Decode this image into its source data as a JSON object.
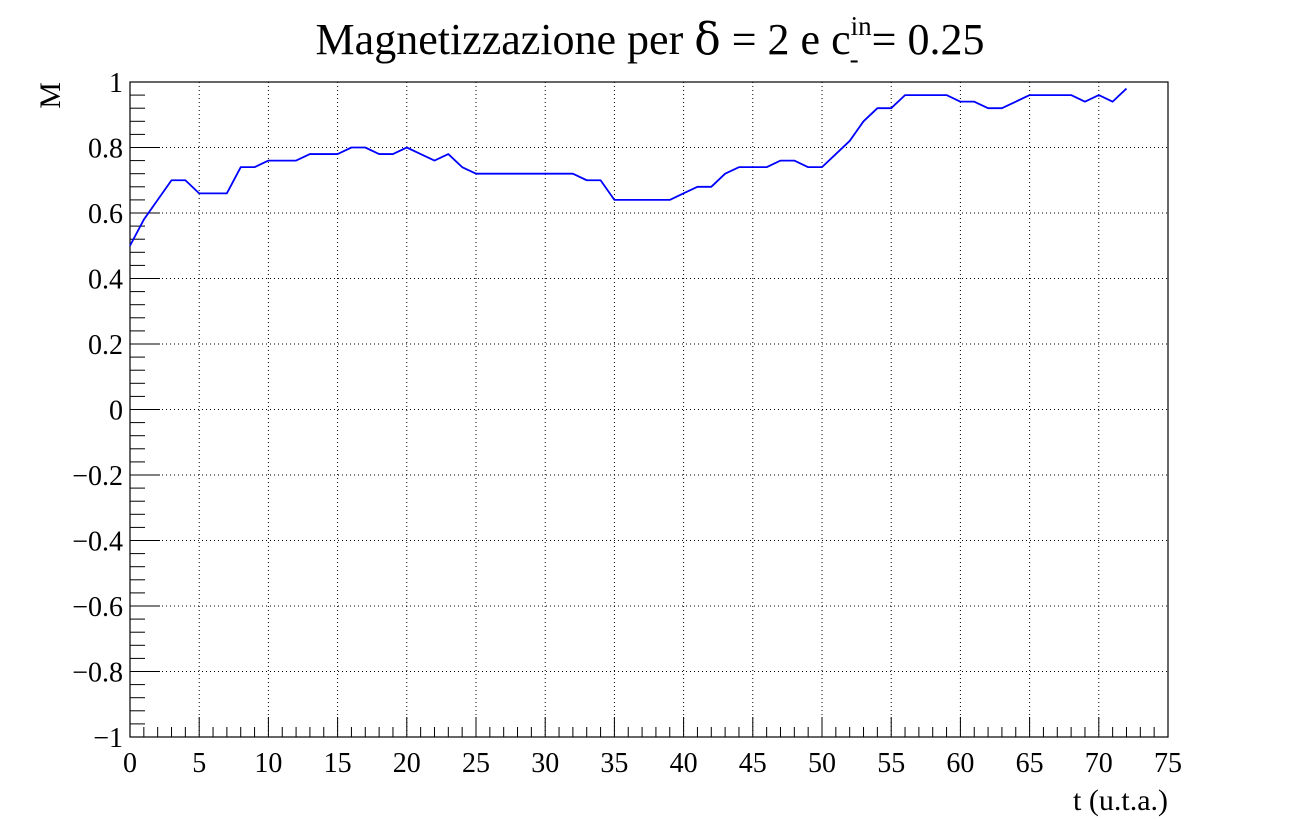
{
  "chart_data": {
    "type": "line",
    "title": {
      "prefix": "Magnetizzazione per ",
      "delta_symbol": "δ",
      "delta_rest": " = 2 e c",
      "superscript": "in",
      "subscript": "-",
      "suffix": " = 0.25"
    },
    "xlabel": "t (u.t.a.)",
    "ylabel": "M",
    "xlim": [
      0,
      75
    ],
    "ylim": [
      -1,
      1
    ],
    "x_ticks": [
      "0",
      "5",
      "10",
      "15",
      "20",
      "25",
      "30",
      "35",
      "40",
      "45",
      "50",
      "55",
      "60",
      "65",
      "70",
      "75"
    ],
    "y_ticks": [
      "−1",
      "−0.8",
      "−0.6",
      "−0.4",
      "−0.2",
      "0",
      "0.2",
      "0.4",
      "0.6",
      "0.8",
      "1"
    ],
    "grid": true,
    "line_color": "#0000ff",
    "series": [
      {
        "x": [
          0,
          1,
          2,
          3,
          4,
          5,
          6,
          7,
          8,
          9,
          10,
          11,
          12,
          13,
          14,
          15,
          16,
          17,
          18,
          19,
          20,
          21,
          22,
          23,
          24,
          25,
          26,
          27,
          28,
          29,
          30,
          31,
          32,
          33,
          34,
          35,
          36,
          37,
          38,
          39,
          40,
          41,
          42,
          43,
          44,
          45,
          46,
          47,
          48,
          49,
          50,
          51,
          52,
          53,
          54,
          55,
          56,
          57,
          58,
          59,
          60,
          61,
          62,
          63,
          64,
          65,
          66,
          67,
          68,
          69,
          70,
          71,
          72
        ],
        "y": [
          0.5,
          0.58,
          0.64,
          0.7,
          0.7,
          0.66,
          0.66,
          0.66,
          0.74,
          0.74,
          0.76,
          0.76,
          0.76,
          0.78,
          0.78,
          0.78,
          0.8,
          0.8,
          0.78,
          0.78,
          0.8,
          0.78,
          0.76,
          0.78,
          0.74,
          0.72,
          0.72,
          0.72,
          0.72,
          0.72,
          0.72,
          0.72,
          0.72,
          0.7,
          0.7,
          0.64,
          0.64,
          0.64,
          0.64,
          0.64,
          0.66,
          0.68,
          0.68,
          0.72,
          0.74,
          0.74,
          0.74,
          0.76,
          0.76,
          0.74,
          0.74,
          0.78,
          0.82,
          0.88,
          0.92,
          0.92,
          0.96,
          0.96,
          0.96,
          0.96,
          0.94,
          0.94,
          0.92,
          0.92,
          0.94,
          0.96,
          0.96,
          0.96,
          0.96,
          0.94,
          0.96,
          0.94,
          0.98
        ]
      }
    ]
  }
}
